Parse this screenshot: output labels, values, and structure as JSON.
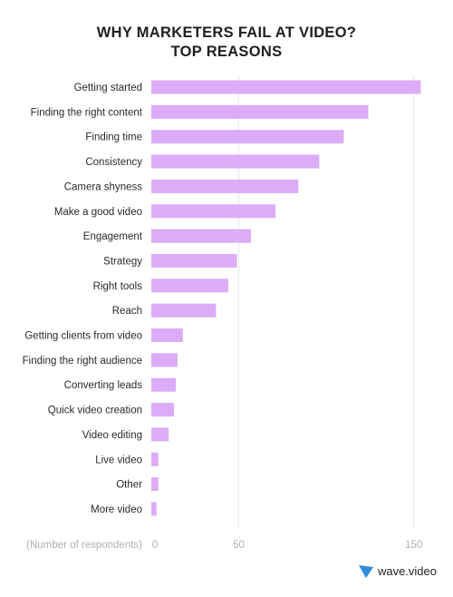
{
  "chart_data": {
    "type": "bar",
    "orientation": "horizontal",
    "title": "WHY MARKETERS FAIL AT VIDEO?",
    "subtitle": "TOP REASONS",
    "xlabel": "(Number of respondents)",
    "categories": [
      "Getting started",
      "Finding the right content",
      "Finding time",
      "Consistency",
      "Camera shyness",
      "Make a good video",
      "Engagement",
      "Strategy",
      "Right tools",
      "Reach",
      "Getting clients from video",
      "Finding the right audience",
      "Converting leads",
      "Quick video creation",
      "Video editing",
      "Live video",
      "Other",
      "More video"
    ],
    "values": [
      154,
      124,
      110,
      96,
      84,
      71,
      57,
      49,
      44,
      37,
      18,
      15,
      14,
      13,
      10,
      4,
      4,
      3
    ],
    "xlim": [
      0,
      160
    ],
    "xticks": [
      0,
      50,
      150
    ],
    "grid": true,
    "bar_color": "#dcacf8",
    "grid_color": "#e4e4e4",
    "label_color": "#2a2a2a",
    "tick_color": "#b0b0b0"
  },
  "brand": {
    "name": "wave.video",
    "logo_color": "#2e8bd6"
  }
}
